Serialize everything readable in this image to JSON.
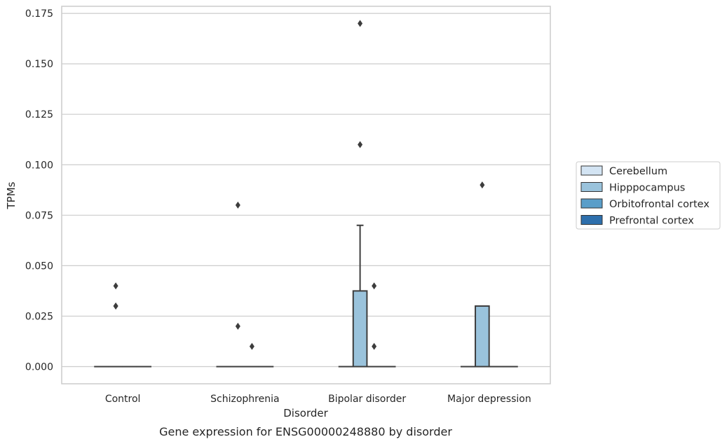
{
  "chart_data": {
    "type": "box",
    "caption": "Gene expression for ENSG00000248880 by disorder",
    "xlabel": "Disorder",
    "ylabel": "TPMs",
    "categories": [
      "Control",
      "Schizophrenia",
      "Bipolar disorder",
      "Major depression"
    ],
    "ylim": [
      -0.0085,
      0.1785
    ],
    "yticks": [
      0.0,
      0.025,
      0.05,
      0.075,
      0.1,
      0.125,
      0.15,
      0.175
    ],
    "ytick_labels": [
      "0.000",
      "0.025",
      "0.050",
      "0.075",
      "0.100",
      "0.125",
      "0.150",
      "0.175"
    ],
    "grid": true,
    "legend_position": "right",
    "series": [
      {
        "name": "Cerebellum",
        "color": "#d3e4f3",
        "boxes": [
          {
            "q1": 0,
            "median": 0,
            "q3": 0,
            "whisker_low": 0,
            "whisker_high": 0,
            "outliers": []
          },
          {
            "q1": 0,
            "median": 0,
            "q3": 0,
            "whisker_low": 0,
            "whisker_high": 0,
            "outliers": []
          },
          {
            "q1": 0,
            "median": 0,
            "q3": 0,
            "whisker_low": 0,
            "whisker_high": 0,
            "outliers": []
          },
          {
            "q1": 0,
            "median": 0,
            "q3": 0,
            "whisker_low": 0,
            "whisker_high": 0,
            "outliers": []
          }
        ]
      },
      {
        "name": "Hipppocampus",
        "color": "#9ac3dc",
        "boxes": [
          {
            "q1": 0,
            "median": 0,
            "q3": 0,
            "whisker_low": 0,
            "whisker_high": 0,
            "outliers": [
              0.03,
              0.03,
              0.04
            ]
          },
          {
            "q1": 0,
            "median": 0,
            "q3": 0,
            "whisker_low": 0,
            "whisker_high": 0,
            "outliers": [
              0.02,
              0.08
            ]
          },
          {
            "q1": 0,
            "median": 0,
            "q3": 0.0375,
            "whisker_low": 0,
            "whisker_high": 0.07,
            "outliers": [
              0.11,
              0.17
            ]
          },
          {
            "q1": 0,
            "median": 0,
            "q3": 0.03,
            "whisker_low": 0,
            "whisker_high": 0.03,
            "outliers": [
              0.09
            ]
          }
        ]
      },
      {
        "name": "Orbitofrontal cortex",
        "color": "#5a9ec9",
        "boxes": [
          {
            "q1": 0,
            "median": 0,
            "q3": 0,
            "whisker_low": 0,
            "whisker_high": 0,
            "outliers": []
          },
          {
            "q1": 0,
            "median": 0,
            "q3": 0,
            "whisker_low": 0,
            "whisker_high": 0,
            "outliers": [
              0.01
            ]
          },
          {
            "q1": 0,
            "median": 0,
            "q3": 0,
            "whisker_low": 0,
            "whisker_high": 0,
            "outliers": [
              0.01,
              0.04
            ]
          },
          {
            "q1": 0,
            "median": 0,
            "q3": 0,
            "whisker_low": 0,
            "whisker_high": 0,
            "outliers": []
          }
        ]
      },
      {
        "name": "Prefrontal cortex",
        "color": "#2e6fac",
        "boxes": [
          {
            "q1": 0,
            "median": 0,
            "q3": 0,
            "whisker_low": 0,
            "whisker_high": 0,
            "outliers": []
          },
          {
            "q1": 0,
            "median": 0,
            "q3": 0,
            "whisker_low": 0,
            "whisker_high": 0,
            "outliers": []
          },
          {
            "q1": 0,
            "median": 0,
            "q3": 0,
            "whisker_low": 0,
            "whisker_high": 0,
            "outliers": []
          },
          {
            "q1": 0,
            "median": 0,
            "q3": 0,
            "whisker_low": 0,
            "whisker_high": 0,
            "outliers": []
          }
        ]
      }
    ]
  }
}
